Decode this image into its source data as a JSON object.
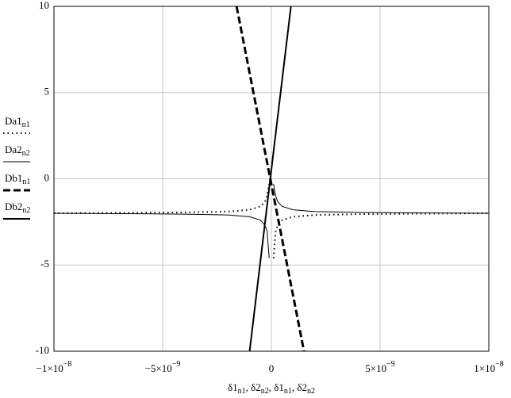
{
  "chart_data": {
    "type": "line",
    "x_label": "δ1n1, δ2n2, δ1n1, δ2n2",
    "xlim": [
      -1e-08,
      1e-08
    ],
    "ylim": [
      -10,
      10
    ],
    "xticks": [
      {
        "value": -1e-08,
        "label": "−1×10−8"
      },
      {
        "value": -5e-09,
        "label": "−5×10−9"
      },
      {
        "value": 0,
        "label": "0"
      },
      {
        "value": 5e-09,
        "label": "5×10−9"
      },
      {
        "value": 1e-08,
        "label": "1×10−8"
      }
    ],
    "yticks": [
      -10,
      -5,
      0,
      5,
      10
    ],
    "grid": true,
    "legend": "left",
    "series": [
      {
        "name": "Da1n1",
        "color": "#000000",
        "dash": "dotted",
        "line_width": 2,
        "x": [
          -1e-08,
          -6e-09,
          -4e-09,
          -2e-09,
          -1e-09,
          -5e-10,
          -3e-10,
          -2e-10,
          -1e-10,
          0,
          1e-10,
          2e-10,
          3e-10,
          5e-10,
          1e-09,
          2e-09,
          4e-09,
          6e-09,
          1e-08
        ],
        "values": [
          -2,
          -1.97,
          -1.95,
          -1.9,
          -1.8,
          -1.6,
          -1.35,
          -1,
          -0.3,
          null,
          -4.6,
          -3,
          -2.7,
          -2.4,
          -2.2,
          -2.1,
          -2.05,
          -2.03,
          -2
        ]
      },
      {
        "name": "Da2n2",
        "color": "#000000",
        "dash": "solid",
        "line_width": 1,
        "x": [
          -1e-08,
          -6e-09,
          -4e-09,
          -2e-09,
          -1e-09,
          -5e-10,
          -3e-10,
          -2e-10,
          -1e-10,
          0,
          1e-10,
          2e-10,
          3e-10,
          5e-10,
          1e-09,
          2e-09,
          4e-09,
          6e-09,
          1e-08
        ],
        "values": [
          -2,
          -2.03,
          -2.05,
          -2.1,
          -2.2,
          -2.4,
          -2.7,
          -3,
          -4.6,
          null,
          -0.3,
          -1,
          -1.35,
          -1.6,
          -1.8,
          -1.9,
          -1.95,
          -1.97,
          -2
        ]
      },
      {
        "name": "Db1n1",
        "color": "#000000",
        "dash": "dashed",
        "line_width": 3,
        "x": [
          -1.6e-09,
          1.5e-09
        ],
        "values": [
          10,
          -10
        ]
      },
      {
        "name": "Db2n2",
        "color": "#000000",
        "dash": "solid",
        "line_width": 2,
        "x": [
          -1e-09,
          9e-10
        ],
        "values": [
          -10,
          10
        ]
      }
    ]
  }
}
